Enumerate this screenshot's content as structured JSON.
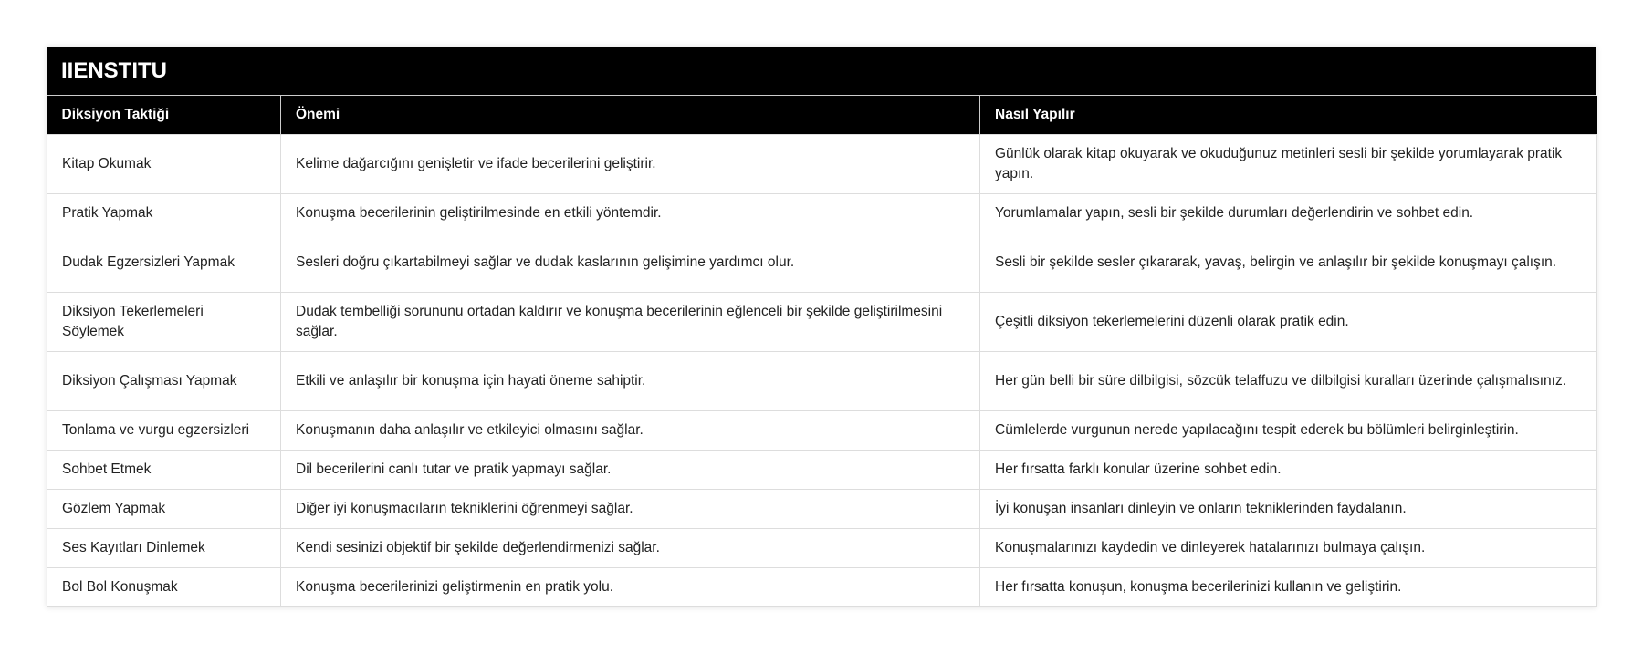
{
  "title": "IIENSTITU",
  "columns": [
    "Diksiyon Taktiği",
    "Önemi",
    "Nasıl Yapılır"
  ],
  "rows": [
    [
      "Kitap Okumak",
      "Kelime dağarcığını genişletir ve ifade becerilerini geliştirir.",
      "Günlük olarak kitap okuyarak ve okuduğunuz metinleri sesli bir şekilde yorumlayarak pratik yapın."
    ],
    [
      "Pratik Yapmak",
      "Konuşma becerilerinin geliştirilmesinde en etkili yöntemdir.",
      "Yorumlamalar yapın, sesli bir şekilde durumları değerlendirin ve sohbet edin."
    ],
    [
      "Dudak Egzersizleri Yapmak",
      "Sesleri doğru çıkartabilmeyi sağlar ve dudak kaslarının gelişimine yardımcı olur.",
      "Sesli bir şekilde sesler çıkararak, yavaş, belirgin ve anlaşılır bir şekilde konuşmayı çalışın."
    ],
    [
      "Diksiyon Tekerlemeleri Söylemek",
      "Dudak tembelliği sorununu ortadan kaldırır ve konuşma becerilerinin eğlenceli bir şekilde geliştirilmesini sağlar.",
      "Çeşitli diksiyon tekerlemelerini düzenli olarak pratik edin."
    ],
    [
      "Diksiyon Çalışması Yapmak",
      "Etkili ve anlaşılır bir konuşma için hayati öneme sahiptir.",
      "Her gün belli bir süre dilbilgisi, sözcük telaffuzu ve dilbilgisi kuralları üzerinde çalışmalısınız."
    ],
    [
      "Tonlama ve vurgu egzersizleri",
      "Konuşmanın daha anlaşılır ve etkileyici olmasını sağlar.",
      "Cümlelerde vurgunun nerede yapılacağını tespit ederek bu bölümleri belirginleştirin."
    ],
    [
      "Sohbet Etmek",
      "Dil becerilerini canlı tutar ve pratik yapmayı sağlar.",
      "Her fırsatta farklı konular üzerine sohbet edin."
    ],
    [
      "Gözlem Yapmak",
      "Diğer iyi konuşmacıların tekniklerini öğrenmeyi sağlar.",
      "İyi konuşan insanları dinleyin ve onların tekniklerinden faydalanın."
    ],
    [
      "Ses Kayıtları Dinlemek",
      "Kendi sesinizi objektif bir şekilde değerlendirmenizi sağlar.",
      "Konuşmalarınızı kaydedin ve dinleyerek hatalarınızı bulmaya çalışın."
    ],
    [
      "Bol Bol Konuşmak",
      "Konuşma becerilerinizi geliştirmenin en pratik yolu.",
      "Her fırsatta konuşun, konuşma becerilerinizi kullanın ve geliştirin."
    ]
  ]
}
